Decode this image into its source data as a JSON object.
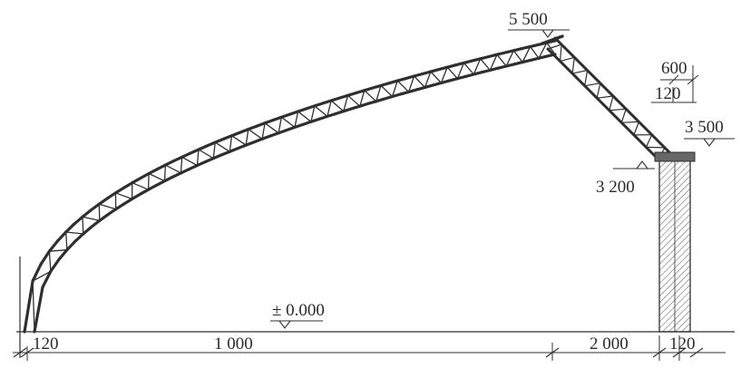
{
  "drawing": {
    "elevations": {
      "ridge": "5 500",
      "eave_top": "3 500",
      "support": "3 200",
      "ground": "± 0.000"
    },
    "wall_dims": {
      "overhang": "600",
      "wall_thickness": "120"
    },
    "bottom_dims": {
      "left_wall": "120",
      "arch_span": "1 000",
      "slope_span": "2 000",
      "right_wall": "120"
    }
  }
}
